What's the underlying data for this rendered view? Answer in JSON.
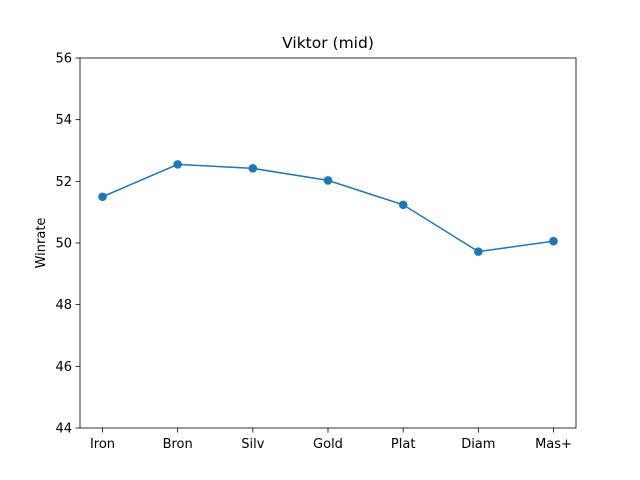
{
  "chart_data": {
    "type": "line",
    "title": "Viktor (mid)",
    "xlabel": "",
    "ylabel": "Winrate",
    "categories": [
      "Iron",
      "Bron",
      "Silv",
      "Gold",
      "Plat",
      "Diam",
      "Mas+"
    ],
    "series": [
      {
        "values": [
          51.5,
          52.55,
          52.42,
          52.03,
          51.24,
          49.72,
          50.06
        ]
      }
    ],
    "ylim": [
      44,
      56
    ],
    "yticks": [
      "44",
      "46",
      "48",
      "50",
      "52",
      "54",
      "56"
    ],
    "grid": false,
    "line_color": "#1f77b4"
  }
}
